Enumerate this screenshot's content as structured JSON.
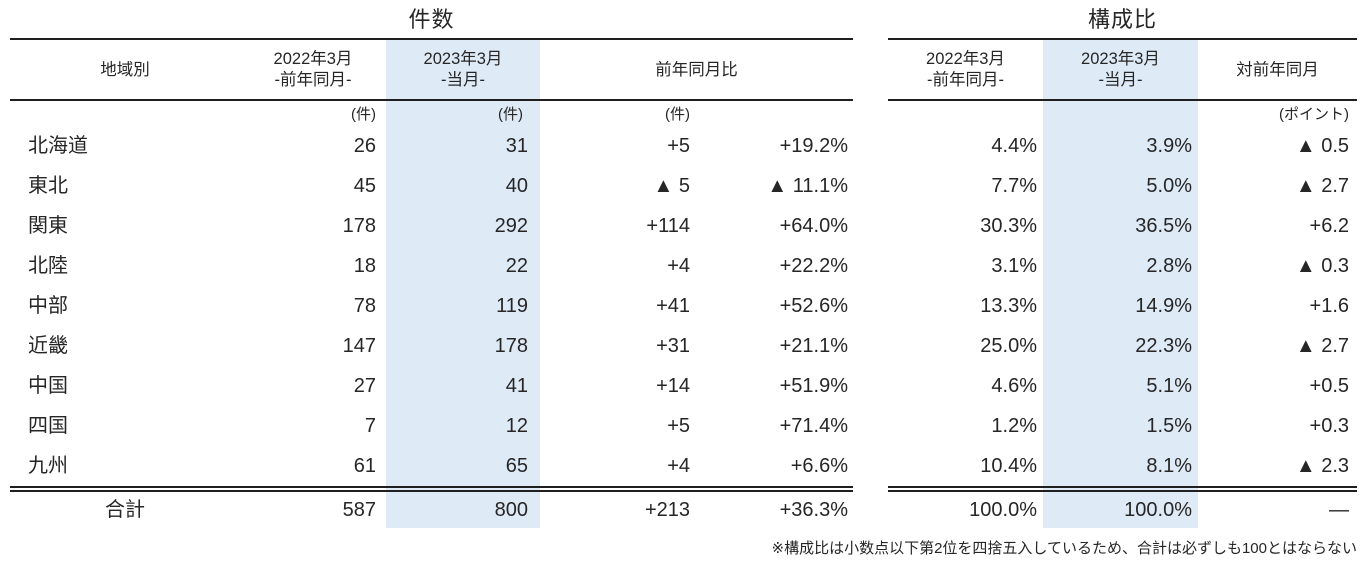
{
  "table": {
    "left_title": "件数",
    "right_title": "構成比",
    "header": {
      "region": "地域別",
      "count_2022_line1": "2022年3月",
      "count_2022_line2": "-前年同月-",
      "count_2023_line1": "2023年3月",
      "count_2023_line2": "-当月-",
      "yoy": "前年同月比",
      "share_2022_line1": "2022年3月",
      "share_2022_line2": "-前年同月-",
      "share_2023_line1": "2023年3月",
      "share_2023_line2": "-当月-",
      "vs_prev_year": "対前年同月"
    },
    "units": {
      "count_2022": "(件)",
      "count_2023": "(件)",
      "yoy": "(件)",
      "points": "(ポイント)"
    },
    "rows": [
      {
        "region": "北海道",
        "y2022": "26",
        "y2023": "31",
        "diff": "+5",
        "diff_pct": "+19.2%",
        "share2022": "4.4%",
        "share2023": "3.9%",
        "pts": "▲ 0.5"
      },
      {
        "region": "東北",
        "y2022": "45",
        "y2023": "40",
        "diff": "▲ 5",
        "diff_pct": "▲ 11.1%",
        "share2022": "7.7%",
        "share2023": "5.0%",
        "pts": "▲ 2.7"
      },
      {
        "region": "関東",
        "y2022": "178",
        "y2023": "292",
        "diff": "+114",
        "diff_pct": "+64.0%",
        "share2022": "30.3%",
        "share2023": "36.5%",
        "pts": "+6.2"
      },
      {
        "region": "北陸",
        "y2022": "18",
        "y2023": "22",
        "diff": "+4",
        "diff_pct": "+22.2%",
        "share2022": "3.1%",
        "share2023": "2.8%",
        "pts": "▲ 0.3"
      },
      {
        "region": "中部",
        "y2022": "78",
        "y2023": "119",
        "diff": "+41",
        "diff_pct": "+52.6%",
        "share2022": "13.3%",
        "share2023": "14.9%",
        "pts": "+1.6"
      },
      {
        "region": "近畿",
        "y2022": "147",
        "y2023": "178",
        "diff": "+31",
        "diff_pct": "+21.1%",
        "share2022": "25.0%",
        "share2023": "22.3%",
        "pts": "▲ 2.7"
      },
      {
        "region": "中国",
        "y2022": "27",
        "y2023": "41",
        "diff": "+14",
        "diff_pct": "+51.9%",
        "share2022": "4.6%",
        "share2023": "5.1%",
        "pts": "+0.5"
      },
      {
        "region": "四国",
        "y2022": "7",
        "y2023": "12",
        "diff": "+5",
        "diff_pct": "+71.4%",
        "share2022": "1.2%",
        "share2023": "1.5%",
        "pts": "+0.3"
      },
      {
        "region": "九州",
        "y2022": "61",
        "y2023": "65",
        "diff": "+4",
        "diff_pct": "+6.6%",
        "share2022": "10.4%",
        "share2023": "8.1%",
        "pts": "▲ 2.3"
      }
    ],
    "total": {
      "region": "合計",
      "y2022": "587",
      "y2023": "800",
      "diff": "+213",
      "diff_pct": "+36.3%",
      "share2022": "100.0%",
      "share2023": "100.0%",
      "pts": "—"
    },
    "footnote": "※構成比は小数点以下第2位を四捨五入しているため、合計は必ずしも100とはならない",
    "colors": {
      "highlight": "#DEEAF6",
      "text": "#262626",
      "line": "#1f1f1f"
    }
  }
}
